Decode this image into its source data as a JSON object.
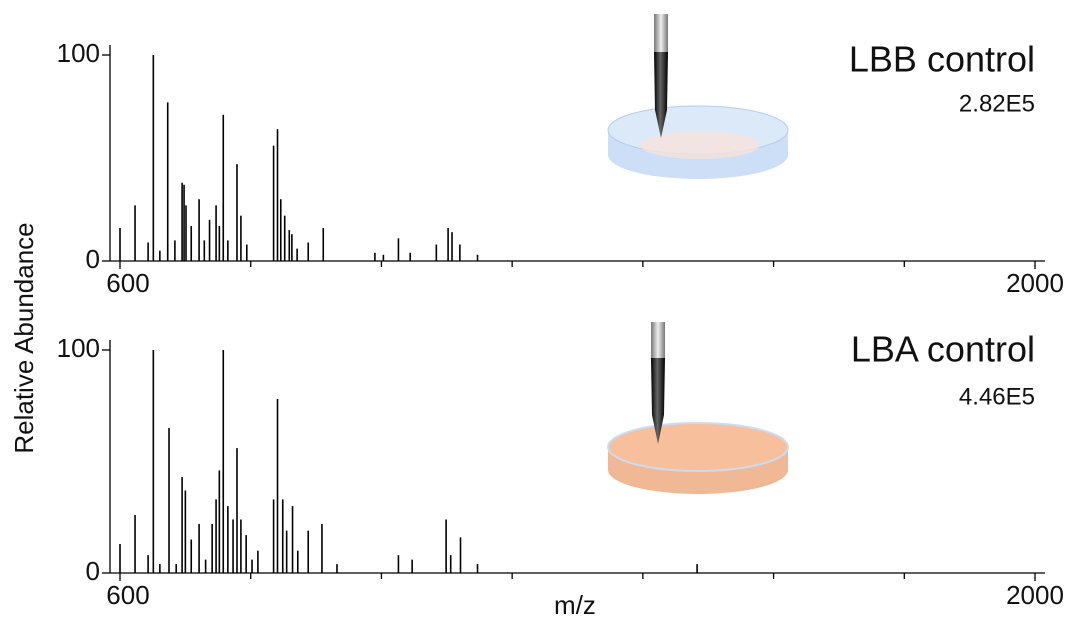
{
  "chart_data": [
    {
      "type": "stem",
      "title": "LBB control",
      "annotation": "2.82E5",
      "ylabel": "Relative Abundance",
      "x": [
        600,
        623,
        643,
        651,
        661,
        673,
        684,
        695,
        698,
        701,
        709,
        721,
        729,
        737,
        747,
        752,
        758,
        765,
        779,
        785,
        794,
        835,
        841,
        846,
        852,
        859,
        863,
        871,
        888,
        911,
        990,
        1003,
        1026,
        1044,
        1084,
        1102,
        1108,
        1120,
        1147
      ],
      "values": [
        16,
        27,
        9,
        100,
        5,
        77,
        10,
        38,
        37,
        27,
        17,
        30,
        10,
        20,
        27,
        17,
        71,
        10,
        47,
        22,
        8,
        56,
        64,
        30,
        22,
        15,
        13,
        6,
        9,
        16,
        4,
        3,
        11,
        4,
        8,
        16,
        14,
        8,
        3
      ],
      "color": "#000000",
      "xlim": [
        600,
        2000
      ],
      "xticks": [
        600,
        2000
      ],
      "xminor_ticks": [
        800,
        1000,
        1200,
        1400,
        1600,
        1800
      ],
      "ylim": [
        0,
        100
      ],
      "yticks": [
        0,
        100
      ]
    },
    {
      "type": "stem",
      "title": "LBA control",
      "annotation": "4.46E5",
      "xlabel": "m/z",
      "x": [
        600,
        623,
        643,
        651,
        661,
        675,
        686,
        695,
        700,
        709,
        721,
        731,
        741,
        747,
        752,
        758,
        765,
        773,
        779,
        785,
        793,
        802,
        811,
        835,
        841,
        849,
        855,
        864,
        872,
        888,
        909,
        932,
        1026,
        1047,
        1099,
        1106,
        1121,
        1147,
        1483
      ],
      "values": [
        13,
        26,
        8,
        100,
        4,
        65,
        4,
        43,
        37,
        15,
        22,
        6,
        22,
        33,
        46,
        100,
        30,
        24,
        56,
        24,
        17,
        6,
        10,
        33,
        78,
        33,
        19,
        30,
        10,
        19,
        22,
        4,
        8,
        6,
        24,
        8,
        16,
        4,
        4
      ],
      "color": "#000000",
      "xlim": [
        600,
        2000
      ],
      "xticks": [
        600,
        2000
      ],
      "xminor_ticks": [
        800,
        1000,
        1200,
        1400,
        1600,
        1800
      ],
      "ylim": [
        0,
        100
      ],
      "yticks": [
        0,
        100
      ]
    }
  ]
}
